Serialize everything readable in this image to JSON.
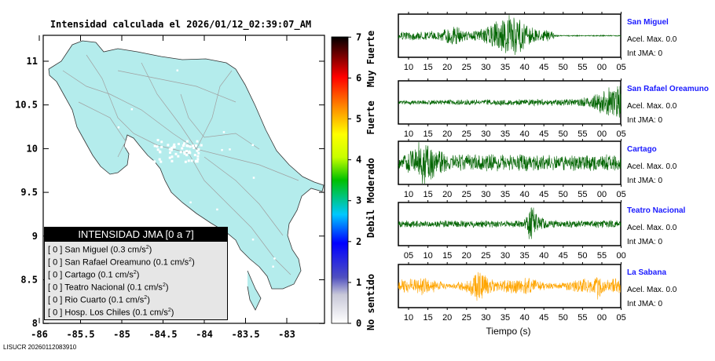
{
  "title": "Intensidad calculada el 2026/01/12_02:39:07_AM",
  "footer": "LISUCR 20260112083910",
  "map": {
    "lon_ticks": [
      "-86",
      "-85.5",
      "-85",
      "-84.5",
      "-84",
      "-83.5",
      "-83"
    ],
    "lat_ticks": [
      "11",
      "10.5",
      "10",
      "9.5",
      "9",
      "8.5",
      "8"
    ],
    "land_color": "#b4ecec"
  },
  "colorbar": {
    "ticks": [
      "0",
      "1",
      "2",
      "3",
      "4",
      "5",
      "6",
      "7"
    ],
    "labels": [
      "No sentido",
      "Debil",
      "Moderado",
      "Fuerte",
      "Muy Fuerte"
    ]
  },
  "legend": {
    "title": "INTENSIDAD JMA [0 a 7]",
    "items": [
      {
        "int": "[ 0 ]",
        "name": "San Miguel",
        "pga": "(0.3 cm/s",
        "sup": "2",
        "close": ")"
      },
      {
        "int": "[ 0 ]",
        "name": "San Rafael Oreamuno",
        "pga": "(0.1 cm/s",
        "sup": "2",
        "close": ")"
      },
      {
        "int": "[ 0 ]",
        "name": "Cartago",
        "pga": "(0.1 cm/s",
        "sup": "2",
        "close": ")"
      },
      {
        "int": "[ 0 ]",
        "name": "Teatro Nacional",
        "pga": "(0.1 cm/s",
        "sup": "2",
        "close": ")"
      },
      {
        "int": "[ 0 ]",
        "name": "Rio Cuarto",
        "pga": "(0.1 cm/s",
        "sup": "2",
        "close": ")"
      },
      {
        "int": "[ 0 ]",
        "name": "Hosp. Los Chiles",
        "pga": "(0.1 cm/s",
        "sup": "2",
        "close": ")"
      }
    ]
  },
  "stations": [
    {
      "name": "San Miguel",
      "acel": "Acel. Max. 0.0",
      "int": "Int JMA: 0",
      "color": "#006400",
      "ticks": [
        "10",
        "15",
        "20",
        "25",
        "30",
        "35",
        "40",
        "45",
        "50",
        "55",
        "00",
        "05"
      ]
    },
    {
      "name": "San Rafael Oreamuno",
      "acel": "Acel. Max. 0.0",
      "int": "Int JMA: 0",
      "color": "#006400",
      "ticks": [
        "10",
        "15",
        "20",
        "25",
        "30",
        "35",
        "40",
        "45",
        "50",
        "55",
        "00",
        "05"
      ]
    },
    {
      "name": "Cartago",
      "acel": "Acel. Max. 0.0",
      "int": "Int JMA: 0",
      "color": "#006400",
      "ticks": [
        "10",
        "15",
        "20",
        "25",
        "30",
        "35",
        "40",
        "45",
        "50",
        "55",
        "00",
        "05"
      ]
    },
    {
      "name": "Teatro Nacional",
      "acel": "Acel. Max. 0.0",
      "int": "Int JMA: 0",
      "color": "#006400",
      "ticks": [
        "05",
        "10",
        "15",
        "20",
        "25",
        "30",
        "35",
        "40",
        "45",
        "50",
        "55",
        "00"
      ]
    },
    {
      "name": "La Sabana",
      "acel": "Acel. Max. 0.0",
      "int": "Int JMA: 0",
      "color": "#ffa500",
      "ticks": [
        "10",
        "15",
        "20",
        "25",
        "30",
        "35",
        "40",
        "45",
        "50",
        "55",
        "00",
        "05"
      ]
    }
  ],
  "xlabel": "Tiempo (s)"
}
